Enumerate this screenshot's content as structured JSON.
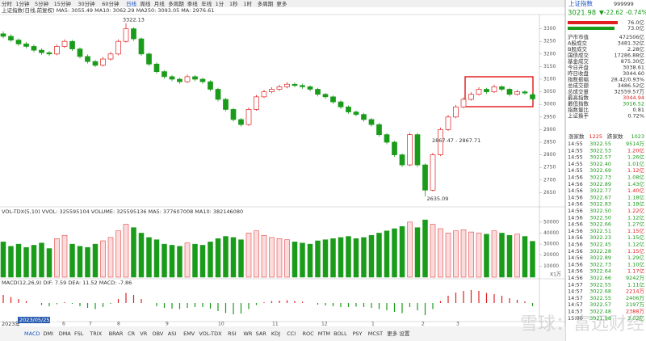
{
  "toolbar": [
    "分时",
    "1分钟",
    "5分钟",
    "15分钟",
    "30分钟",
    "60分钟",
    "日线",
    "周线",
    "月线",
    "多周期",
    "季线",
    "年线",
    "1分",
    "1秒",
    "1时",
    "多周期",
    "更多"
  ],
  "main_legend": "上证指数(日线,前复权)  MA5: 3055.49  MA10: 3062.29  MA250: 3093.05  MA: 2976.61",
  "price_chart": {
    "ylim": [
      2600,
      3350
    ],
    "yticks": [
      3300,
      3250,
      3200,
      3150,
      3100,
      3050,
      3000,
      2950,
      2900,
      2850,
      2800,
      2750,
      2700,
      2650
    ],
    "candles": [
      [
        3280,
        3290,
        3262,
        3270
      ],
      [
        3270,
        3278,
        3248,
        3255
      ],
      [
        3255,
        3262,
        3232,
        3240
      ],
      [
        3240,
        3248,
        3222,
        3230
      ],
      [
        3230,
        3238,
        3207,
        3215
      ],
      [
        3215,
        3222,
        3197,
        3205
      ],
      [
        3205,
        3212,
        3192,
        3200
      ],
      [
        3200,
        3238,
        3195,
        3230
      ],
      [
        3230,
        3258,
        3224,
        3250
      ],
      [
        3250,
        3256,
        3212,
        3220
      ],
      [
        3220,
        3226,
        3182,
        3190
      ],
      [
        3190,
        3198,
        3162,
        3170
      ],
      [
        3170,
        3176,
        3148,
        3155
      ],
      [
        3155,
        3188,
        3150,
        3180
      ],
      [
        3180,
        3208,
        3174,
        3200
      ],
      [
        3200,
        3258,
        3195,
        3250
      ],
      [
        3250,
        3322.13,
        3245,
        3300
      ],
      [
        3300,
        3306,
        3252,
        3260
      ],
      [
        3260,
        3266,
        3192,
        3200
      ],
      [
        3200,
        3206,
        3152,
        3160
      ],
      [
        3160,
        3166,
        3122,
        3130
      ],
      [
        3130,
        3136,
        3102,
        3110
      ],
      [
        3110,
        3116,
        3092,
        3100
      ],
      [
        3100,
        3106,
        3082,
        3090
      ],
      [
        3090,
        3118,
        3085,
        3110
      ],
      [
        3110,
        3116,
        3092,
        3100
      ],
      [
        3100,
        3106,
        3082,
        3090
      ],
      [
        3090,
        3096,
        3052,
        3060
      ],
      [
        3060,
        3066,
        3012,
        3020
      ],
      [
        3020,
        3026,
        2972,
        2980
      ],
      [
        2980,
        2986,
        2932,
        2940
      ],
      [
        2940,
        2946,
        2912,
        2920
      ],
      [
        2920,
        2988,
        2915,
        2980
      ],
      [
        2980,
        3038,
        2975,
        3030
      ],
      [
        3030,
        3058,
        3025,
        3050
      ],
      [
        3050,
        3068,
        3044,
        3060
      ],
      [
        3060,
        3078,
        3054,
        3070
      ],
      [
        3070,
        3088,
        3064,
        3080
      ],
      [
        3080,
        3086,
        3068,
        3075
      ],
      [
        3075,
        3082,
        3062,
        3070
      ],
      [
        3070,
        3076,
        3052,
        3060
      ],
      [
        3060,
        3066,
        3032,
        3040
      ],
      [
        3040,
        3046,
        3022,
        3030
      ],
      [
        3030,
        3036,
        3002,
        3010
      ],
      [
        3010,
        3016,
        2982,
        2990
      ],
      [
        2990,
        2996,
        2962,
        2970
      ],
      [
        2970,
        2976,
        2952,
        2960
      ],
      [
        2960,
        2966,
        2932,
        2940
      ],
      [
        2940,
        2946,
        2912,
        2920
      ],
      [
        2920,
        2926,
        2872,
        2880
      ],
      [
        2880,
        2886,
        2842,
        2850
      ],
      [
        2850,
        2856,
        2792,
        2800
      ],
      [
        2800,
        2806,
        2752,
        2760
      ],
      [
        2760,
        2888,
        2755,
        2880
      ],
      [
        2880,
        2886,
        2752,
        2760
      ],
      [
        2760,
        2766,
        2635.09,
        2660
      ],
      [
        2660,
        2808,
        2655,
        2800
      ],
      [
        2800,
        2908,
        2795,
        2900
      ],
      [
        2900,
        2958,
        2895,
        2950
      ],
      [
        2950,
        2998,
        2945,
        2990
      ],
      [
        2990,
        3028,
        2985,
        3020
      ],
      [
        3020,
        3048,
        3015,
        3040
      ],
      [
        3040,
        3068,
        3035,
        3060
      ],
      [
        3060,
        3066,
        3042,
        3050
      ],
      [
        3050,
        3078,
        3045,
        3070
      ],
      [
        3070,
        3076,
        3052,
        3060
      ],
      [
        3060,
        3066,
        3032,
        3040
      ],
      [
        3040,
        3058,
        3035,
        3050
      ],
      [
        3050,
        3056,
        3038,
        3045
      ],
      [
        3038.61,
        3044.94,
        3016.52,
        3021.98
      ]
    ],
    "annotations": [
      "3322.13",
      "2867.47 - 2867.71",
      "2635.09"
    ],
    "months": [
      "6",
      "7",
      "8",
      "9",
      "10",
      "11",
      "12",
      "1",
      "2",
      "3"
    ]
  },
  "volume_legend": "VOL-TDX(5,10)  VVOL: 325595104  VOLUME: 325595136  MA5: 377607008  MA10: 382146080",
  "volume_chart": {
    "ylim": [
      0,
      55000
    ],
    "yticks": [
      50000,
      40000,
      30000,
      20000,
      10000
    ],
    "unit": "X1万",
    "values": [
      32000,
      28000,
      30000,
      27000,
      29000,
      31000,
      26000,
      35000,
      38000,
      30000,
      28000,
      27000,
      30000,
      33000,
      36000,
      42000,
      48000,
      45000,
      40000,
      36000,
      34000,
      30000,
      29000,
      28000,
      31000,
      30000,
      29000,
      32000,
      35000,
      37000,
      36000,
      34000,
      40000,
      42000,
      38000,
      36000,
      35000,
      34000,
      32000,
      31000,
      30000,
      33000,
      34000,
      35000,
      36000,
      37000,
      35000,
      36000,
      38000,
      40000,
      42000,
      44000,
      46000,
      50000,
      45000,
      52000,
      48000,
      44000,
      40000,
      42000,
      43000,
      41000,
      40000,
      39000,
      42000,
      40000,
      38000,
      39000,
      37000,
      32560
    ]
  },
  "macd_legend": "MACD(12,26,9)  DIF: 7.59  DEA: 11.52  MACD: -7.86",
  "macd_chart": {
    "ylim": [
      -40,
      40
    ],
    "values": [
      20,
      15,
      10,
      5,
      0,
      -5,
      -8,
      -3,
      2,
      -2,
      -8,
      -12,
      -15,
      -10,
      -2,
      10,
      25,
      20,
      10,
      0,
      -8,
      -12,
      -14,
      -15,
      -12,
      -10,
      -10,
      -14,
      -20,
      -25,
      -28,
      -26,
      -15,
      -5,
      2,
      5,
      6,
      7,
      5,
      3,
      0,
      -4,
      -6,
      -8,
      -10,
      -10,
      -9,
      -10,
      -12,
      -15,
      -18,
      -22,
      -25,
      -10,
      -18,
      -30,
      -15,
      5,
      18,
      26,
      30,
      32,
      30,
      25,
      22,
      18,
      12,
      8,
      4,
      -7.86
    ]
  },
  "year_label": "2023年",
  "date_label": "2023/05/25/四",
  "tabs": [
    "MACD",
    "DMI",
    "DMA",
    "FSL",
    "TRIX",
    "BRAR",
    "CR",
    "VR",
    "OBV",
    "ASI",
    "EMV",
    "VOL-TDX",
    "RSI",
    "WR",
    "SAR",
    "KDJ",
    "CCI",
    "ROC",
    "MTM",
    "BOLL",
    "PSY",
    "MCST",
    "更多",
    "设置"
  ],
  "panel": {
    "name": "上证指数",
    "code": "999999",
    "price": "3021.98",
    "change": "▼-22.62",
    "pct": "-0.74%",
    "buy": "76.0亿",
    "sell": "73.0亿",
    "stats": [
      [
        "沪市市值",
        "472506亿"
      ],
      [
        "A股成交",
        "3481.32亿"
      ],
      [
        "B股成交",
        "2.28亿"
      ],
      [
        "国债成交",
        "17286.88亿"
      ],
      [
        "基金成交",
        "875.30亿"
      ],
      [
        "今日开盘",
        "3038.61"
      ],
      [
        "昨日收盘",
        "3044.60"
      ],
      [
        "指数振幅",
        "28.42/0.93%"
      ],
      [
        "总成交额",
        "3486.52亿"
      ],
      [
        "总成交量",
        "32559.57万"
      ],
      [
        "最高指数",
        "3044.94"
      ],
      [
        "最低指数",
        "3016.52"
      ],
      [
        "指数量比",
        "0.81"
      ],
      [
        "上证换手",
        "0.72%"
      ]
    ],
    "breadth": [
      "涨家数",
      "1225",
      "跌家数",
      "1023"
    ],
    "ticks": [
      [
        "14:55",
        "3022.55",
        "9514万"
      ],
      [
        "14:55",
        "3022.53",
        "1.20亿"
      ],
      [
        "14:55",
        "3022.57",
        "1.26亿"
      ],
      [
        "14:55",
        "3022.40",
        "1.01亿"
      ],
      [
        "14:55",
        "3022.69",
        "1.12亿"
      ],
      [
        "14:56",
        "3022.73",
        "1.08亿"
      ],
      [
        "14:56",
        "3022.89",
        "1.43亿"
      ],
      [
        "14:56",
        "3022.77",
        "1.40亿"
      ],
      [
        "14:56",
        "3022.67",
        "1.18亿"
      ],
      [
        "14:56",
        "3022.83",
        "1.18亿"
      ],
      [
        "14:56",
        "3022.50",
        "1.22亿"
      ],
      [
        "14:56",
        "3022.50",
        "1.12亿"
      ],
      [
        "14:56",
        "3022.66",
        "1.27亿"
      ],
      [
        "14:56",
        "3022.51",
        "1.15亿"
      ],
      [
        "14:56",
        "3022.23",
        "1.15亿"
      ],
      [
        "14:56",
        "3022.45",
        "1.12亿"
      ],
      [
        "14:56",
        "3022.28",
        "1.15亿"
      ],
      [
        "14:56",
        "3022.89",
        "1.29亿"
      ],
      [
        "14:56",
        "3022.73",
        "1.10亿"
      ],
      [
        "14:56",
        "3022.64",
        "1.17亿"
      ],
      [
        "14:56",
        "3022.66",
        "9242万"
      ],
      [
        "14:57",
        "3022.55",
        "1.11亿"
      ],
      [
        "14:57",
        "3022.68",
        "2214万"
      ],
      [
        "14:57",
        "3022.55",
        "2406万"
      ],
      [
        "14:57",
        "3022.57",
        "2197万"
      ],
      [
        "14:57",
        "3022.48",
        "2388万"
      ],
      [
        "15:00",
        "3021.98",
        "3.02亿"
      ]
    ]
  },
  "watermark": "雪球：富远财经"
}
